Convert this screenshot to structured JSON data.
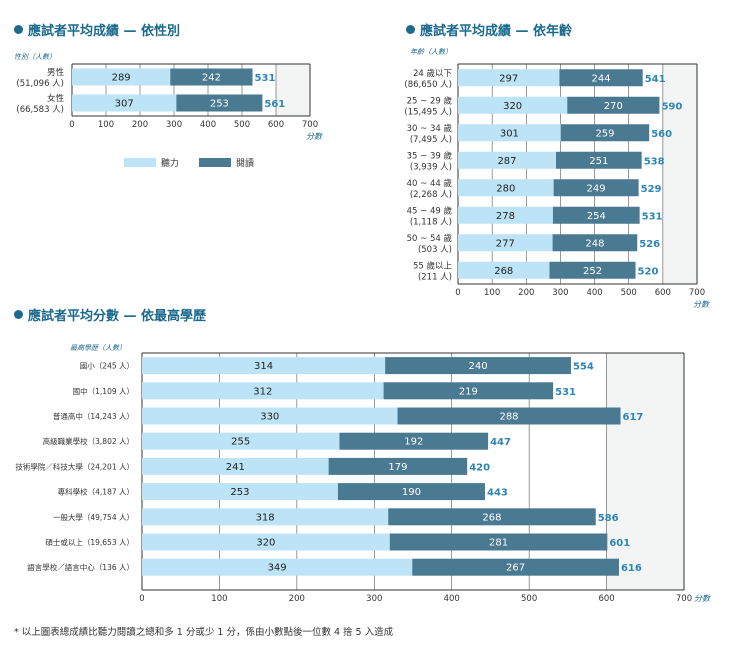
{
  "panels": {
    "gender_title": "應試者平均成績 — 依性別",
    "age_title": "應試者平均成績 — 依年齡",
    "edu_title": "應試者平均分數 — 依最高學歷"
  },
  "legend": {
    "listening": "聽力",
    "reading": "閱讀"
  },
  "colors": {
    "listening": "#bde3f7",
    "reading": "#4a7a92",
    "total": "#2e86b5",
    "plot_bg": "#f2f5f4"
  },
  "footnote": "* 以上圖表總成績比聽力閱讀之總和多 1 分或少 1 分，係由小數點後一位數 4 捨 5 入造成",
  "chart_data": [
    {
      "type": "bar",
      "stacked": true,
      "orientation": "horizontal",
      "ycat_title": "性別（人數）",
      "categories": [
        [
          "男性",
          "(51,096 人)"
        ],
        [
          "女性",
          "(66,583 人)"
        ]
      ],
      "series": [
        {
          "name": "聽力",
          "values": [
            289,
            307
          ]
        },
        {
          "name": "閱讀",
          "values": [
            242,
            253
          ]
        }
      ],
      "totals": [
        531,
        561
      ],
      "xlim": [
        0,
        700
      ],
      "xticks": [
        0,
        100,
        200,
        300,
        400,
        500,
        600,
        700
      ],
      "xunit": "分數"
    },
    {
      "type": "bar",
      "stacked": true,
      "orientation": "horizontal",
      "ycat_title": "年齡（人數）",
      "categories": [
        [
          "24 歲以下",
          "(86,650 人)"
        ],
        [
          "25 ~ 29 歲",
          "(15,495 人)"
        ],
        [
          "30 ~ 34 歲",
          "(7,495 人)"
        ],
        [
          "35 ~ 39 歲",
          "(3,939 人)"
        ],
        [
          "40 ~ 44 歲",
          "(2,268 人)"
        ],
        [
          "45 ~ 49 歲",
          "(1,118 人)"
        ],
        [
          "50 ~ 54 歲",
          "(503 人)"
        ],
        [
          "55 歲以上",
          "(211 人)"
        ]
      ],
      "series": [
        {
          "name": "聽力",
          "values": [
            297,
            320,
            301,
            287,
            280,
            278,
            277,
            268
          ]
        },
        {
          "name": "閱讀",
          "values": [
            244,
            270,
            259,
            251,
            249,
            254,
            248,
            252
          ]
        }
      ],
      "totals": [
        541,
        590,
        560,
        538,
        529,
        531,
        526,
        520
      ],
      "xlim": [
        0,
        700
      ],
      "xticks": [
        0,
        100,
        200,
        300,
        400,
        500,
        600,
        700
      ],
      "xunit": "分數"
    },
    {
      "type": "bar",
      "stacked": true,
      "orientation": "horizontal",
      "ycat_title": "最高學歷（人數）",
      "categories": [
        [
          "國小（245 人）"
        ],
        [
          "國中（1,109 人）"
        ],
        [
          "普通高中（14,243 人）"
        ],
        [
          "高級職業學校（3,802 人）"
        ],
        [
          "技術學院／科技大學（24,201 人）"
        ],
        [
          "專科學校（4,187 人）"
        ],
        [
          "一般大學（49,754 人）"
        ],
        [
          "碩士或以上（19,653 人）"
        ],
        [
          "語言學校／語言中心（136 人）"
        ]
      ],
      "series": [
        {
          "name": "聽力",
          "values": [
            314,
            312,
            330,
            255,
            241,
            253,
            318,
            320,
            349
          ]
        },
        {
          "name": "閱讀",
          "values": [
            240,
            219,
            288,
            192,
            179,
            190,
            268,
            281,
            267
          ]
        }
      ],
      "totals": [
        554,
        531,
        617,
        447,
        420,
        443,
        586,
        601,
        616
      ],
      "xlim": [
        0,
        700
      ],
      "xticks": [
        0,
        100,
        200,
        300,
        400,
        500,
        600,
        700
      ],
      "xunit": "分數"
    }
  ]
}
